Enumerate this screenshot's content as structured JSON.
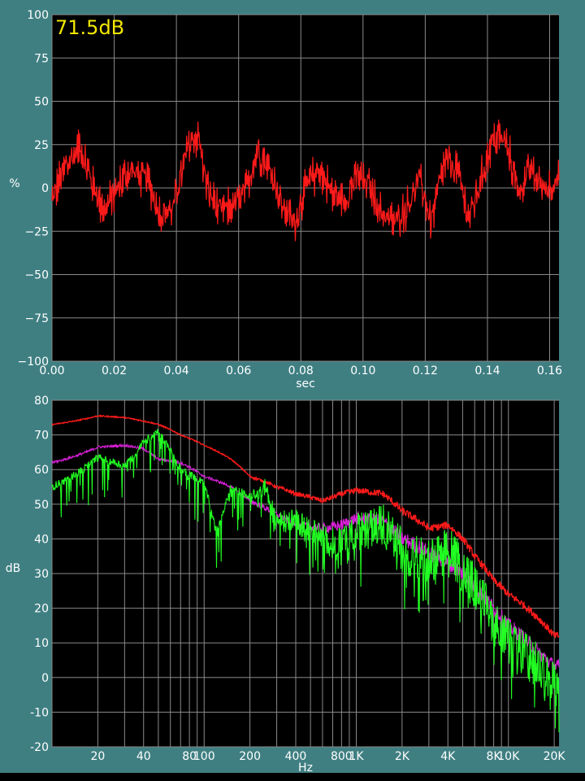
{
  "readout": "71.5dB",
  "chart_data": [
    {
      "type": "line",
      "title": "",
      "xlabel": "sec",
      "ylabel": "%",
      "xlim": [
        0,
        0.163
      ],
      "ylim": [
        -100,
        100
      ],
      "grid": true,
      "x_ticks": [
        0,
        0.02,
        0.04,
        0.06,
        0.08,
        0.1,
        0.12,
        0.14,
        0.16
      ],
      "x_tick_labels": [
        "0.00",
        "0.02",
        "0.04",
        "0.06",
        "0.08",
        "0.10",
        "0.12",
        "0.14",
        "0.16"
      ],
      "y_ticks": [
        100,
        75,
        50,
        25,
        0,
        -25,
        -50,
        -75,
        -100
      ],
      "y_tick_labels": [
        "100",
        "75",
        "50",
        "25",
        "0",
        "−25",
        "−50",
        "−75",
        "−100"
      ],
      "series": [
        {
          "color": "#ff1a1a",
          "x": [
            0,
            0.004,
            0.009,
            0.013,
            0.017,
            0.022,
            0.026,
            0.031,
            0.035,
            0.039,
            0.044,
            0.047,
            0.05,
            0.054,
            0.058,
            0.062,
            0.066,
            0.07,
            0.074,
            0.078,
            0.082,
            0.086,
            0.09,
            0.094,
            0.098,
            0.102,
            0.106,
            0.11,
            0.114,
            0.118,
            0.122,
            0.126,
            0.13,
            0.134,
            0.138,
            0.142,
            0.146,
            0.15,
            0.154,
            0.158,
            0.162
          ],
          "y": [
            -8,
            12,
            24,
            2,
            -14,
            4,
            10,
            4,
            -16,
            -12,
            25,
            30,
            -2,
            -14,
            -10,
            -4,
            22,
            12,
            -10,
            -20,
            2,
            10,
            -3,
            -8,
            8,
            0,
            -15,
            -20,
            -12,
            6,
            -20,
            14,
            12,
            -18,
            5,
            30,
            26,
            -2,
            10,
            0,
            4
          ]
        }
      ]
    },
    {
      "type": "line",
      "title": "",
      "xlabel": "Hz",
      "ylabel": "dB",
      "xscale": "log",
      "xlim": [
        10,
        21500
      ],
      "ylim": [
        -20,
        80
      ],
      "grid": true,
      "x_ticks": [
        20,
        40,
        80,
        100,
        200,
        400,
        800,
        1000,
        2000,
        4000,
        8000,
        10000,
        20000
      ],
      "x_tick_labels": [
        "20",
        "40",
        "80",
        "100",
        "200",
        "400",
        "800",
        "1K",
        "2K",
        "4K",
        "8K",
        "10K",
        "20K"
      ],
      "y_ticks": [
        80,
        70,
        60,
        50,
        40,
        30,
        20,
        10,
        0,
        -10,
        -20
      ],
      "y_tick_labels": [
        "80",
        "70",
        "60",
        "50",
        "40",
        "30",
        "20",
        "10",
        "0",
        "-10",
        "-20"
      ],
      "series": [
        {
          "color": "#ff1a1a",
          "x": [
            10,
            20,
            30,
            40,
            50,
            70,
            100,
            150,
            200,
            300,
            400,
            600,
            800,
            1000,
            1500,
            2000,
            3000,
            4000,
            5000,
            6000,
            8000,
            10000,
            15000,
            20000
          ],
          "y": [
            73,
            75.5,
            75,
            74,
            73,
            70,
            67,
            63,
            58,
            55,
            53,
            51,
            53,
            54,
            53,
            48,
            43,
            44,
            40,
            35,
            28,
            24,
            18,
            12
          ]
        },
        {
          "color": "#d81fd8",
          "x": [
            10,
            20,
            30,
            40,
            50,
            70,
            100,
            150,
            200,
            300,
            400,
            600,
            800,
            1000,
            1500,
            2000,
            3000,
            4000,
            5000,
            6000,
            8000,
            10000,
            15000,
            20000
          ],
          "y": [
            62,
            66.5,
            67,
            66,
            63,
            62,
            58,
            55,
            51,
            47,
            44,
            43,
            44,
            46,
            45,
            40,
            36,
            33,
            30,
            26,
            20,
            15,
            8,
            3
          ]
        },
        {
          "color": "#22ff22",
          "x": [
            10,
            20,
            30,
            40,
            50,
            70,
            100,
            120,
            150,
            200,
            250,
            300,
            400,
            600,
            800,
            1000,
            1500,
            2000,
            3000,
            4000,
            5000,
            6000,
            8000,
            10000,
            15000,
            20000
          ],
          "y": [
            55,
            63.5,
            61,
            68,
            71,
            60,
            56,
            42,
            55,
            52,
            55,
            45,
            45,
            40,
            38,
            42,
            44,
            37,
            33,
            37,
            31,
            26,
            16,
            10,
            4,
            -2
          ]
        }
      ]
    }
  ]
}
